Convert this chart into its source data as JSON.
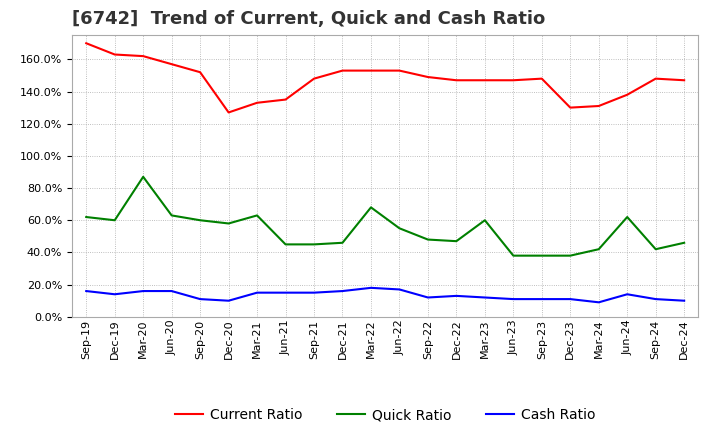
{
  "title": "[6742]  Trend of Current, Quick and Cash Ratio",
  "x_labels": [
    "Sep-19",
    "Dec-19",
    "Mar-20",
    "Jun-20",
    "Sep-20",
    "Dec-20",
    "Mar-21",
    "Jun-21",
    "Sep-21",
    "Dec-21",
    "Mar-22",
    "Jun-22",
    "Sep-22",
    "Dec-22",
    "Mar-23",
    "Jun-23",
    "Sep-23",
    "Dec-23",
    "Mar-24",
    "Jun-24",
    "Sep-24",
    "Dec-24"
  ],
  "current_ratio": [
    170,
    163,
    162,
    157,
    152,
    127,
    133,
    135,
    148,
    153,
    153,
    153,
    149,
    147,
    147,
    147,
    148,
    130,
    131,
    138,
    148,
    147
  ],
  "quick_ratio": [
    62,
    60,
    87,
    63,
    60,
    58,
    63,
    45,
    45,
    46,
    68,
    55,
    48,
    47,
    60,
    38,
    38,
    38,
    42,
    62,
    42,
    46
  ],
  "cash_ratio": [
    16,
    14,
    16,
    16,
    11,
    10,
    15,
    15,
    15,
    16,
    18,
    17,
    12,
    13,
    12,
    11,
    11,
    11,
    9,
    14,
    11,
    10
  ],
  "current_color": "#ff0000",
  "quick_color": "#008000",
  "cash_color": "#0000ff",
  "ylim": [
    0,
    175
  ],
  "yticks": [
    0,
    20,
    40,
    60,
    80,
    100,
    120,
    140,
    160
  ],
  "background_color": "#ffffff",
  "grid_color": "#aaaaaa",
  "title_fontsize": 13,
  "tick_fontsize": 8,
  "legend_fontsize": 10
}
